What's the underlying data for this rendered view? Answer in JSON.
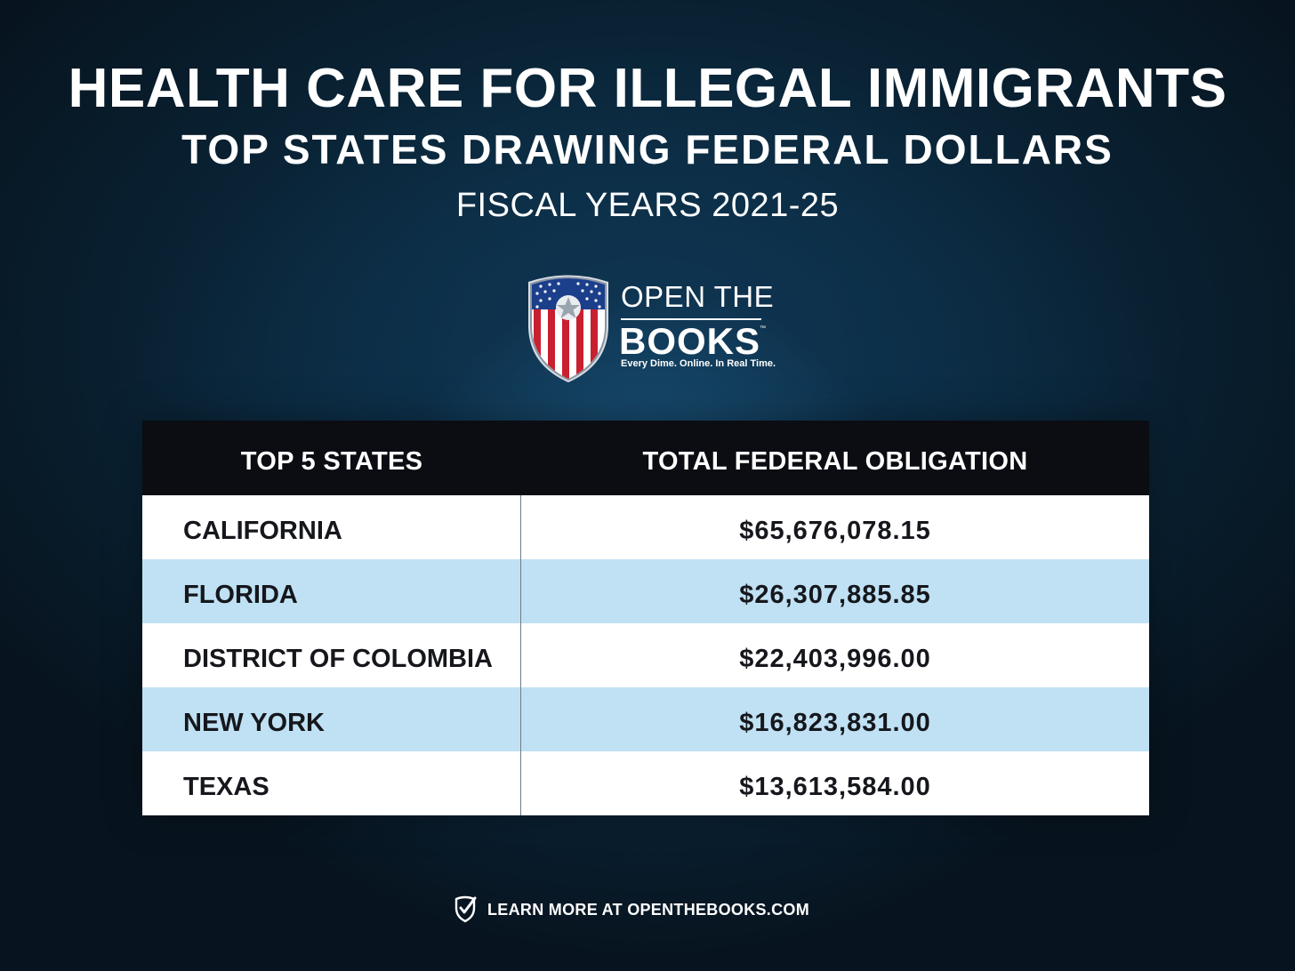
{
  "header": {
    "title": "HEALTH CARE FOR ILLEGAL IMMIGRANTS",
    "subtitle": "TOP STATES DRAWING FEDERAL DOLLARS",
    "period": "FISCAL YEARS 2021-25"
  },
  "logo": {
    "line1": "OPEN THE",
    "line2": "BOOKS",
    "trademark": "™",
    "tagline": "Every Dime. Online. In Real Time.",
    "icon": "shield-flag-icon"
  },
  "table": {
    "headers": {
      "state": "TOP 5 STATES",
      "amount": "TOTAL FEDERAL OBLIGATION"
    },
    "rows": [
      {
        "state": "CALIFORNIA",
        "amount": "$65,676,078.15"
      },
      {
        "state": "FLORIDA",
        "amount": "$26,307,885.85"
      },
      {
        "state": "DISTRICT OF COLOMBIA",
        "amount": "$22,403,996.00"
      },
      {
        "state": "NEW YORK",
        "amount": "$16,823,831.00"
      },
      {
        "state": "TEXAS",
        "amount": "$13,613,584.00"
      }
    ]
  },
  "footer": {
    "text": "LEARN MORE AT OPENTHEBOOKS.COM",
    "icon": "shield-check-icon"
  },
  "colors": {
    "header_bg": "#0b0d12",
    "row_white": "#ffffff",
    "row_blue": "#bfe1f3",
    "shield_red": "#c8202f",
    "shield_blue": "#1c3f8c"
  }
}
